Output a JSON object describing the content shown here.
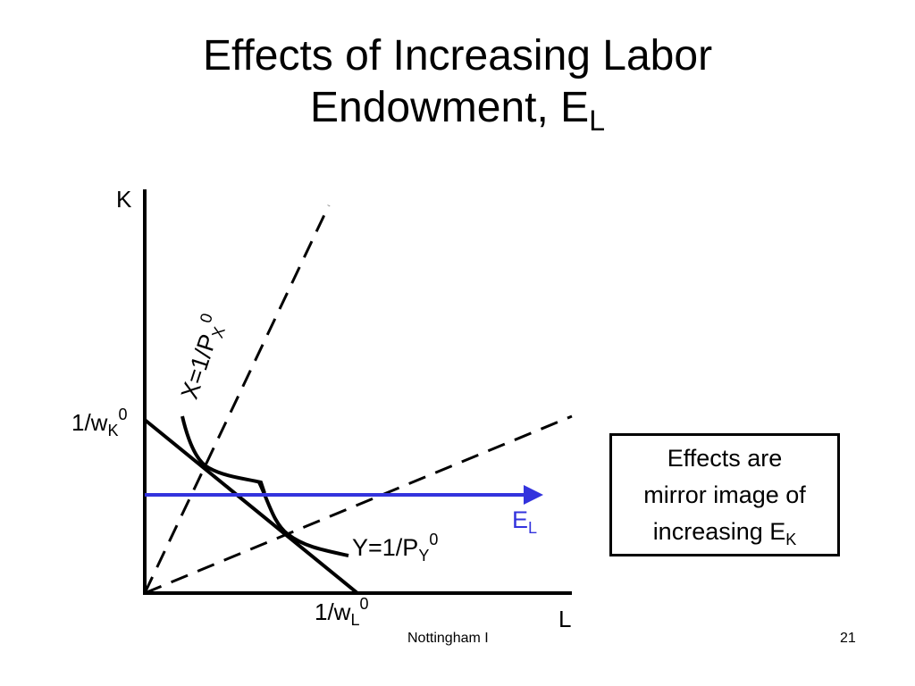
{
  "slide": {
    "title_line1": "Effects of Increasing Labor",
    "title_line2": "Endowment, E",
    "title_sub": "L",
    "footer_center": "Nottingham I",
    "page_number": "21"
  },
  "diagram": {
    "y_axis_label": "K",
    "x_axis_label": "L",
    "wk_label": "1/w",
    "wk_sub": "K",
    "wk_sup": "0",
    "wl_label": "1/w",
    "wl_sub": "L",
    "wl_sup": "0",
    "x_curve_label": "X=1/P",
    "x_curve_sub": "X",
    "x_curve_sup": "0",
    "y_curve_label": "Y=1/P",
    "y_curve_sub": "Y",
    "y_curve_sup": "0",
    "endowment_label": "E",
    "endowment_sub": "L",
    "arrow_color": "#3333dd"
  },
  "note": {
    "line1": "Effects are",
    "line2": "mirror image of",
    "line3": "increasing E",
    "line3_sub": "K"
  }
}
